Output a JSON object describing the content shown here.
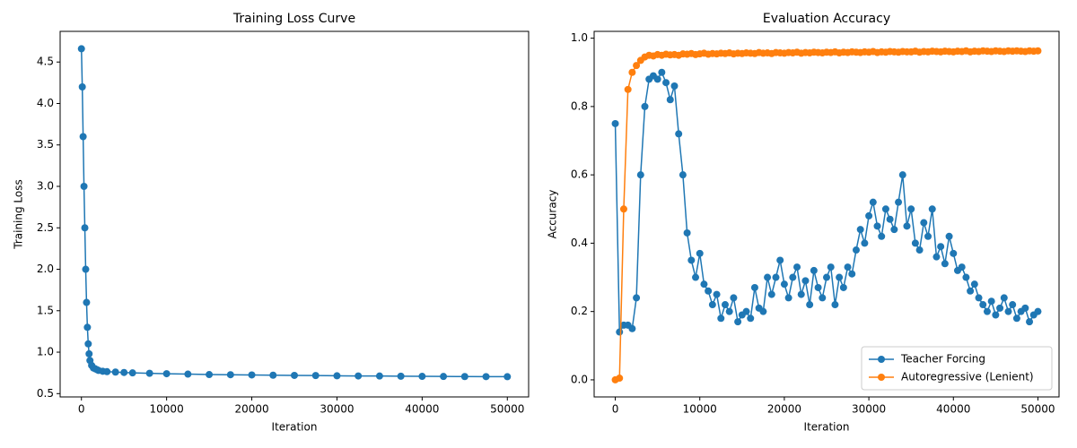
{
  "chart_data": [
    {
      "type": "line",
      "title": "Training Loss Curve",
      "x_label": "Iteration",
      "y_label": "Training Loss",
      "x": [
        0,
        100,
        200,
        300,
        400,
        500,
        600,
        700,
        800,
        900,
        1000,
        1200,
        1400,
        1600,
        1800,
        2000,
        2500,
        3000,
        4000,
        5000,
        6000,
        8000,
        10000,
        12500,
        15000,
        17500,
        20000,
        22500,
        25000,
        27500,
        30000,
        32500,
        35000,
        37500,
        40000,
        42500,
        45000,
        47500,
        50000
      ],
      "series": [
        {
          "name": "Training Loss",
          "color": "#1f77b4",
          "values": [
            4.66,
            4.2,
            3.6,
            3.0,
            2.5,
            2.0,
            1.6,
            1.3,
            1.1,
            0.98,
            0.9,
            0.84,
            0.81,
            0.8,
            0.79,
            0.78,
            0.77,
            0.765,
            0.76,
            0.755,
            0.75,
            0.745,
            0.74,
            0.735,
            0.73,
            0.728,
            0.725,
            0.722,
            0.72,
            0.718,
            0.715,
            0.713,
            0.712,
            0.71,
            0.708,
            0.707,
            0.706,
            0.705,
            0.704
          ]
        }
      ],
      "xlim": [
        -2500,
        52500
      ],
      "xticks": [
        0,
        10000,
        20000,
        30000,
        40000,
        50000
      ],
      "ylim": [
        0.46,
        4.87
      ],
      "yticks": [
        0.5,
        {
          "value": 1,
          "label": "1.0"
        },
        1.5,
        {
          "value": 2,
          "label": "2.0"
        },
        2.5,
        {
          "value": 3,
          "label": "3.0"
        },
        3.5,
        {
          "value": 4,
          "label": "4.0"
        },
        4.5
      ],
      "legend": false
    },
    {
      "type": "line",
      "title": "Evaluation Accuracy",
      "x_label": "Iteration",
      "y_label": "Accuracy",
      "x": [
        0,
        500,
        1000,
        1500,
        2000,
        2500,
        3000,
        3500,
        4000,
        4500,
        5000,
        5500,
        6000,
        6500,
        7000,
        7500,
        8000,
        8500,
        9000,
        9500,
        10000,
        10500,
        11000,
        11500,
        12000,
        12500,
        13000,
        13500,
        14000,
        14500,
        15000,
        15500,
        16000,
        16500,
        17000,
        17500,
        18000,
        18500,
        19000,
        19500,
        20000,
        20500,
        21000,
        21500,
        22000,
        22500,
        23000,
        23500,
        24000,
        24500,
        25000,
        25500,
        26000,
        26500,
        27000,
        27500,
        28000,
        28500,
        29000,
        29500,
        30000,
        30500,
        31000,
        31500,
        32000,
        32500,
        33000,
        33500,
        34000,
        34500,
        35000,
        35500,
        36000,
        36500,
        37000,
        37500,
        38000,
        38500,
        39000,
        39500,
        40000,
        40500,
        41000,
        41500,
        42000,
        42500,
        43000,
        43500,
        44000,
        44500,
        45000,
        45500,
        46000,
        46500,
        47000,
        47500,
        48000,
        48500,
        49000,
        49500,
        50000
      ],
      "series": [
        {
          "name": "Teacher Forcing",
          "color": "#1f77b4",
          "values": [
            0.75,
            0.14,
            0.16,
            0.16,
            0.15,
            0.24,
            0.6,
            0.8,
            0.88,
            0.89,
            0.88,
            0.9,
            0.87,
            0.82,
            0.86,
            0.72,
            0.6,
            0.43,
            0.35,
            0.3,
            0.37,
            0.28,
            0.26,
            0.22,
            0.25,
            0.18,
            0.22,
            0.2,
            0.24,
            0.17,
            0.19,
            0.2,
            0.18,
            0.27,
            0.21,
            0.2,
            0.3,
            0.25,
            0.3,
            0.35,
            0.28,
            0.24,
            0.3,
            0.33,
            0.25,
            0.29,
            0.22,
            0.32,
            0.27,
            0.24,
            0.3,
            0.33,
            0.22,
            0.3,
            0.27,
            0.33,
            0.31,
            0.38,
            0.44,
            0.4,
            0.48,
            0.52,
            0.45,
            0.42,
            0.5,
            0.47,
            0.44,
            0.52,
            0.6,
            0.45,
            0.5,
            0.4,
            0.38,
            0.46,
            0.42,
            0.5,
            0.36,
            0.39,
            0.34,
            0.42,
            0.37,
            0.32,
            0.33,
            0.3,
            0.26,
            0.28,
            0.24,
            0.22,
            0.2,
            0.23,
            0.19,
            0.21,
            0.24,
            0.2,
            0.22,
            0.18,
            0.2,
            0.21,
            0.17,
            0.19,
            0.2
          ]
        },
        {
          "name": "Autoregressive (Lenient)",
          "color": "#ff7f0e",
          "values": [
            0.0,
            0.005,
            0.5,
            0.85,
            0.9,
            0.92,
            0.935,
            0.945,
            0.95,
            0.948,
            0.952,
            0.95,
            0.953,
            0.951,
            0.952,
            0.95,
            0.954,
            0.953,
            0.955,
            0.952,
            0.954,
            0.956,
            0.953,
            0.955,
            0.954,
            0.956,
            0.955,
            0.957,
            0.954,
            0.956,
            0.955,
            0.957,
            0.956,
            0.955,
            0.958,
            0.956,
            0.957,
            0.955,
            0.958,
            0.957,
            0.956,
            0.958,
            0.957,
            0.959,
            0.956,
            0.958,
            0.957,
            0.959,
            0.958,
            0.957,
            0.959,
            0.958,
            0.96,
            0.957,
            0.959,
            0.958,
            0.96,
            0.959,
            0.958,
            0.96,
            0.959,
            0.961,
            0.958,
            0.96,
            0.959,
            0.961,
            0.96,
            0.959,
            0.961,
            0.96,
            0.96,
            0.962,
            0.959,
            0.961,
            0.96,
            0.962,
            0.961,
            0.96,
            0.962,
            0.961,
            0.96,
            0.962,
            0.961,
            0.963,
            0.96,
            0.962,
            0.961,
            0.963,
            0.962,
            0.961,
            0.963,
            0.962,
            0.961,
            0.963,
            0.962,
            0.963,
            0.962,
            0.961,
            0.963,
            0.962,
            0.963
          ]
        }
      ],
      "xlim": [
        -2500,
        52500
      ],
      "xticks": [
        0,
        10000,
        20000,
        30000,
        40000,
        50000
      ],
      "ylim": [
        -0.05,
        1.02
      ],
      "yticks": [
        {
          "value": 0,
          "label": "0.0"
        },
        0.2,
        0.4,
        0.6,
        0.8,
        {
          "value": 1,
          "label": "1.0"
        }
      ],
      "legend": "lower right"
    }
  ]
}
